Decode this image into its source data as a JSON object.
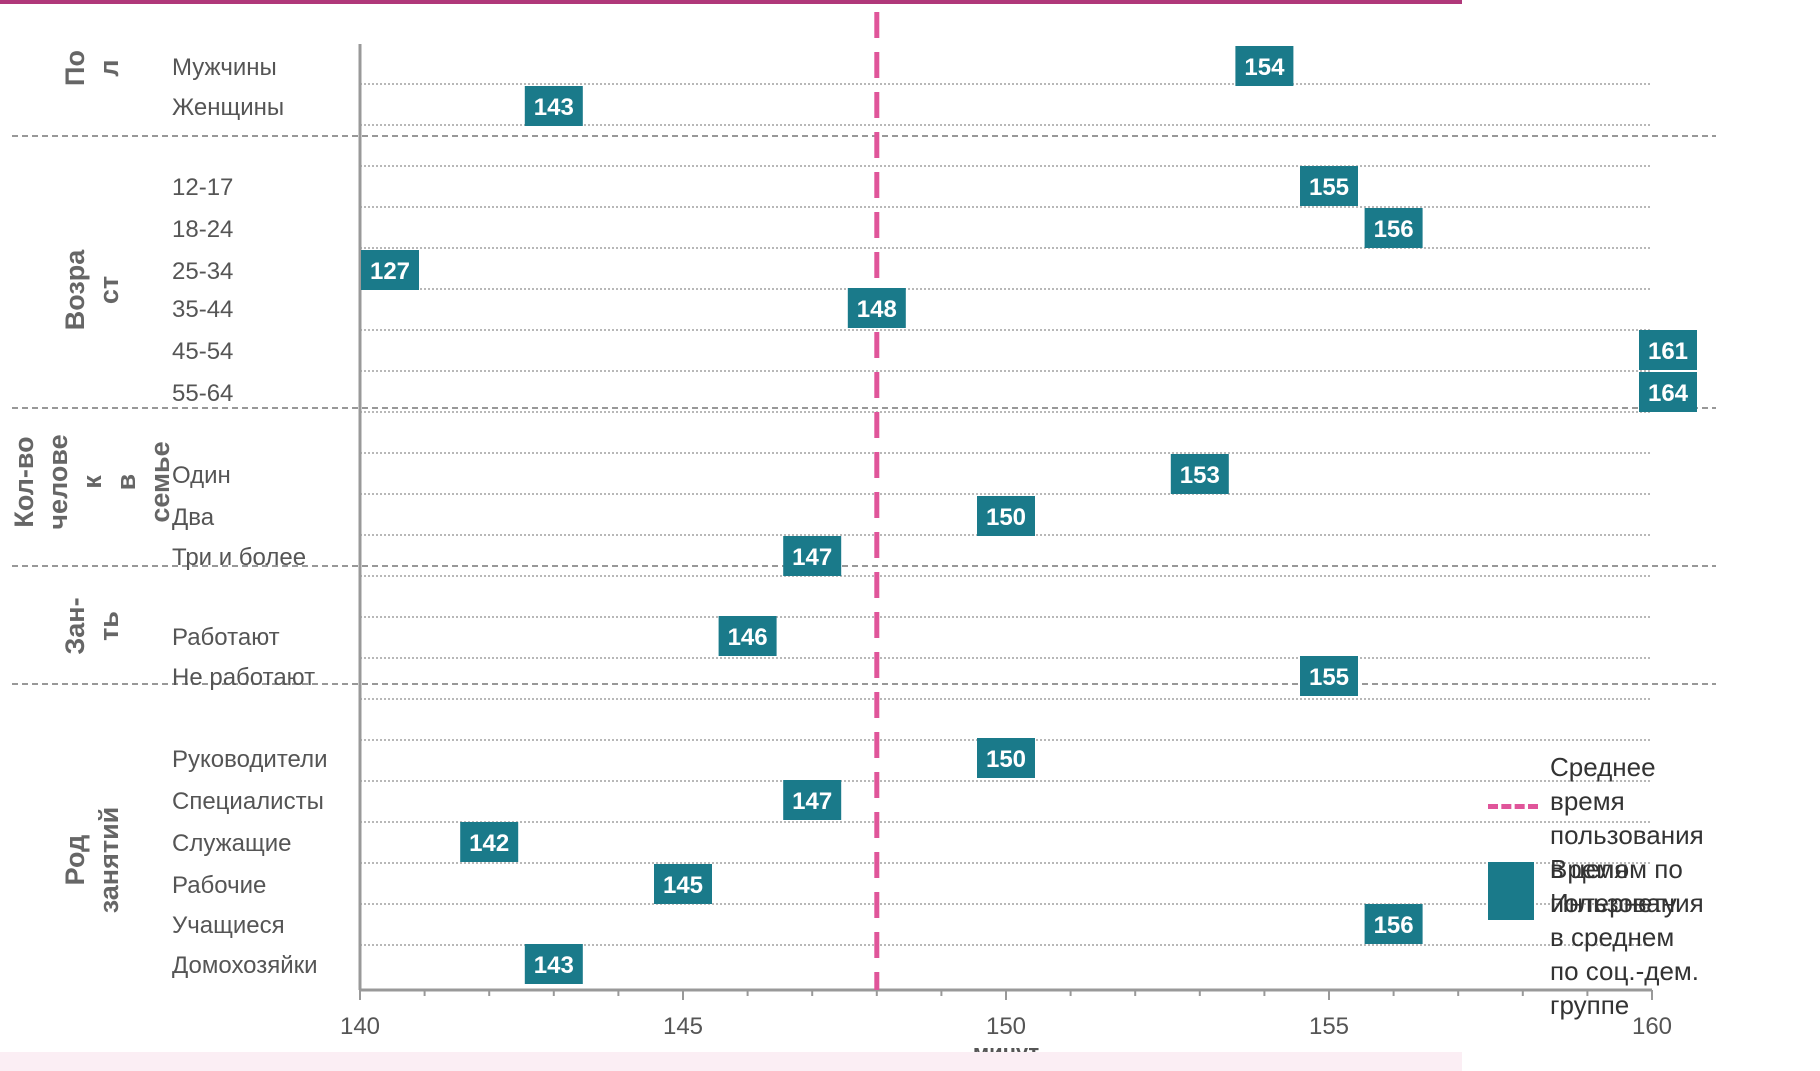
{
  "chart_data": {
    "type": "scatter",
    "xlabel": "минут",
    "xlim": [
      140,
      160
    ],
    "xticks": [
      140,
      145,
      150,
      155,
      160
    ],
    "average": 148,
    "groups": [
      {
        "label": "Пол",
        "label_lines": [
          "По",
          "л"
        ],
        "rows": [
          {
            "category": "Мужчины",
            "value": 154
          },
          {
            "category": "Женщины",
            "value": 143
          }
        ]
      },
      {
        "label": "Возраст",
        "label_lines": [
          "Возра",
          "ст"
        ],
        "rows": [
          {
            "category": "12-17",
            "value": 155
          },
          {
            "category": "18-24",
            "value": 156
          },
          {
            "category": "25-34",
            "value": 127
          },
          {
            "category": "35-44",
            "value": 148
          },
          {
            "category": "45-54",
            "value": 161
          },
          {
            "category": "55-64",
            "value": 164
          }
        ]
      },
      {
        "label": "Кол-во человек в семье",
        "label_lines": [
          "Кол-во",
          "челове",
          "к",
          "в",
          "семье"
        ],
        "rows": [
          {
            "category": "Один",
            "value": 153
          },
          {
            "category": "Два",
            "value": 150
          },
          {
            "category": "Три и более",
            "value": 147
          }
        ]
      },
      {
        "label": "Зан-ть",
        "label_lines": [
          "Зан-",
          "ть"
        ],
        "rows": [
          {
            "category": "Работают",
            "value": 146
          },
          {
            "category": "Не работают",
            "value": 155
          }
        ]
      },
      {
        "label": "Род занятий",
        "label_lines": [
          "Род",
          "занятий"
        ],
        "rows": [
          {
            "category": "Руководители",
            "value": 150
          },
          {
            "category": "Специалисты",
            "value": 147
          },
          {
            "category": "Служащие",
            "value": 142
          },
          {
            "category": "Рабочие",
            "value": 145
          },
          {
            "category": "Учащиеся",
            "value": 156
          },
          {
            "category": "Домохозяйки",
            "value": 143
          }
        ]
      }
    ],
    "legend": {
      "average_label": "Среднее время пользования в целом по Интернету",
      "average_lines": [
        "Среднее время",
        "пользования",
        "в целом по",
        "Интернету"
      ],
      "group_label": "Время пользования в среднем по соц.-дем. группе",
      "group_lines": [
        "Время пользования",
        "в среднем",
        "по соц.-дем. группе"
      ]
    },
    "colors": {
      "marker": "#1a7a8a",
      "average_line": "#e0559a",
      "top_bar": "#b0387a",
      "text": "#555555",
      "group_text": "#666666"
    }
  }
}
